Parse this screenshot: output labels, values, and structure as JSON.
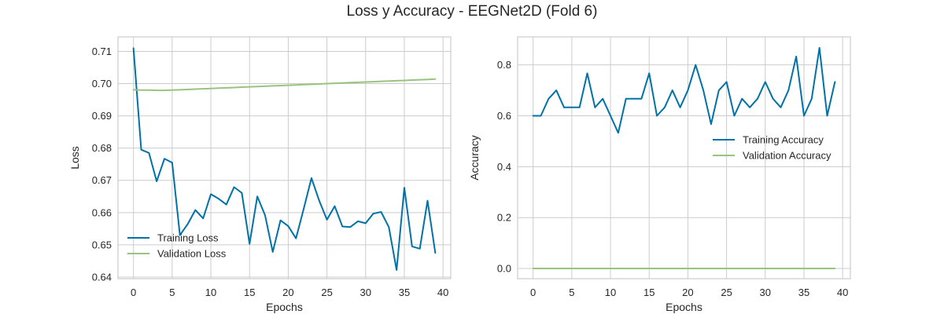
{
  "figure": {
    "title": "Loss y Accuracy - EEGNet2D (Fold 6)"
  },
  "colors": {
    "training": "#0072a8",
    "validation": "#99c47f",
    "grid": "#cccccc",
    "spine": "#cccccc"
  },
  "chart_data": [
    {
      "type": "line",
      "title": "",
      "xlabel": "Epochs",
      "ylabel": "Loss",
      "xlim": [
        -2,
        41
      ],
      "ylim": [
        0.6395,
        0.7145
      ],
      "xticks": [
        0,
        5,
        10,
        15,
        20,
        25,
        30,
        35,
        40
      ],
      "yticks": [
        0.64,
        0.65,
        0.66,
        0.67,
        0.68,
        0.69,
        0.7,
        0.71
      ],
      "ytick_labels": [
        "0.64",
        "0.65",
        "0.66",
        "0.67",
        "0.68",
        "0.69",
        "0.70",
        "0.71"
      ],
      "grid": true,
      "legend_position": "lower-left",
      "x": [
        0,
        1,
        2,
        3,
        4,
        5,
        6,
        7,
        8,
        9,
        10,
        11,
        12,
        13,
        14,
        15,
        16,
        17,
        18,
        19,
        20,
        21,
        22,
        23,
        24,
        25,
        26,
        27,
        28,
        29,
        30,
        31,
        32,
        33,
        34,
        35,
        36,
        37,
        38,
        39
      ],
      "series": [
        {
          "name": "Training Loss",
          "color_key": "training",
          "values": [
            0.711,
            0.6795,
            0.6785,
            0.6697,
            0.6767,
            0.6755,
            0.653,
            0.6564,
            0.6608,
            0.6582,
            0.6657,
            0.6643,
            0.6625,
            0.6679,
            0.6661,
            0.6503,
            0.665,
            0.6592,
            0.6478,
            0.6576,
            0.6558,
            0.652,
            0.6612,
            0.6707,
            0.6637,
            0.6578,
            0.662,
            0.6557,
            0.6555,
            0.6573,
            0.6567,
            0.6597,
            0.6602,
            0.6555,
            0.6422,
            0.6677,
            0.6495,
            0.6488,
            0.6637,
            0.6475
          ]
        },
        {
          "name": "Validation Loss",
          "color_key": "validation",
          "values": [
            0.6981,
            0.698,
            0.698,
            0.6979,
            0.6979,
            0.698,
            0.6981,
            0.6982,
            0.6983,
            0.6984,
            0.6985,
            0.6986,
            0.6987,
            0.6988,
            0.6989,
            0.699,
            0.6991,
            0.6992,
            0.6993,
            0.6994,
            0.6995,
            0.6996,
            0.6997,
            0.6998,
            0.6999,
            0.7,
            0.7001,
            0.7002,
            0.7003,
            0.7004,
            0.7005,
            0.7006,
            0.7007,
            0.7008,
            0.7009,
            0.701,
            0.7011,
            0.7012,
            0.7013,
            0.7014
          ]
        }
      ]
    },
    {
      "type": "line",
      "title": "",
      "xlabel": "Epochs",
      "ylabel": "Accuracy",
      "xlim": [
        -2,
        41
      ],
      "ylim": [
        -0.04,
        0.91
      ],
      "xticks": [
        0,
        5,
        10,
        15,
        20,
        25,
        30,
        35,
        40
      ],
      "yticks": [
        0.0,
        0.2,
        0.4,
        0.6,
        0.8
      ],
      "ytick_labels": [
        "0.0",
        "0.2",
        "0.4",
        "0.6",
        "0.8"
      ],
      "grid": true,
      "legend_position": "center-right",
      "x": [
        0,
        1,
        2,
        3,
        4,
        5,
        6,
        7,
        8,
        9,
        10,
        11,
        12,
        13,
        14,
        15,
        16,
        17,
        18,
        19,
        20,
        21,
        22,
        23,
        24,
        25,
        26,
        27,
        28,
        29,
        30,
        31,
        32,
        33,
        34,
        35,
        36,
        37,
        38,
        39
      ],
      "series": [
        {
          "name": "Training Accuracy",
          "color_key": "training",
          "values": [
            0.6,
            0.6,
            0.667,
            0.7,
            0.633,
            0.633,
            0.633,
            0.767,
            0.633,
            0.667,
            0.6,
            0.533,
            0.667,
            0.667,
            0.667,
            0.767,
            0.6,
            0.633,
            0.7,
            0.633,
            0.7,
            0.8,
            0.7,
            0.567,
            0.7,
            0.733,
            0.6,
            0.667,
            0.633,
            0.667,
            0.733,
            0.667,
            0.633,
            0.7,
            0.833,
            0.6,
            0.667,
            0.867,
            0.6,
            0.733
          ]
        },
        {
          "name": "Validation Accuracy",
          "color_key": "validation",
          "values": [
            0,
            0,
            0,
            0,
            0,
            0,
            0,
            0,
            0,
            0,
            0,
            0,
            0,
            0,
            0,
            0,
            0,
            0,
            0,
            0,
            0,
            0,
            0,
            0,
            0,
            0,
            0,
            0,
            0,
            0,
            0,
            0,
            0,
            0,
            0,
            0,
            0,
            0,
            0,
            0
          ]
        }
      ]
    }
  ]
}
